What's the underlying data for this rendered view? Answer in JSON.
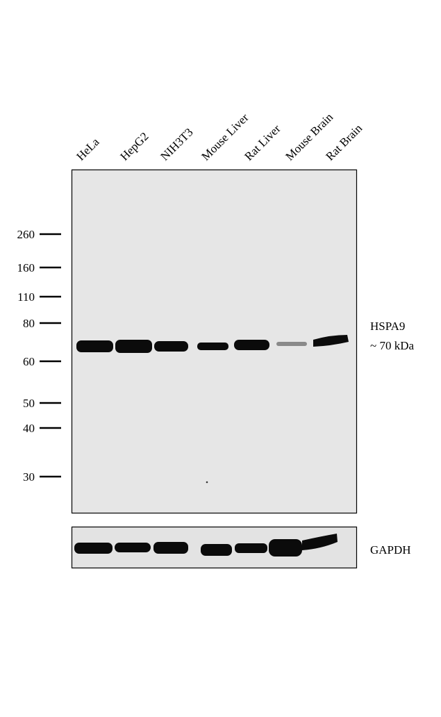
{
  "lanes": [
    "HeLa",
    "HepG2",
    "NIH3T3",
    "Mouse Liver",
    "Rat Liver",
    "Mouse Brain",
    "Rat Brain"
  ],
  "markers": [
    "260",
    "160",
    "110",
    "80",
    "60",
    "50",
    "40",
    "30"
  ],
  "target": {
    "name": "HSPA9",
    "size": "~ 70 kDa"
  },
  "loading_control": "GAPDH"
}
